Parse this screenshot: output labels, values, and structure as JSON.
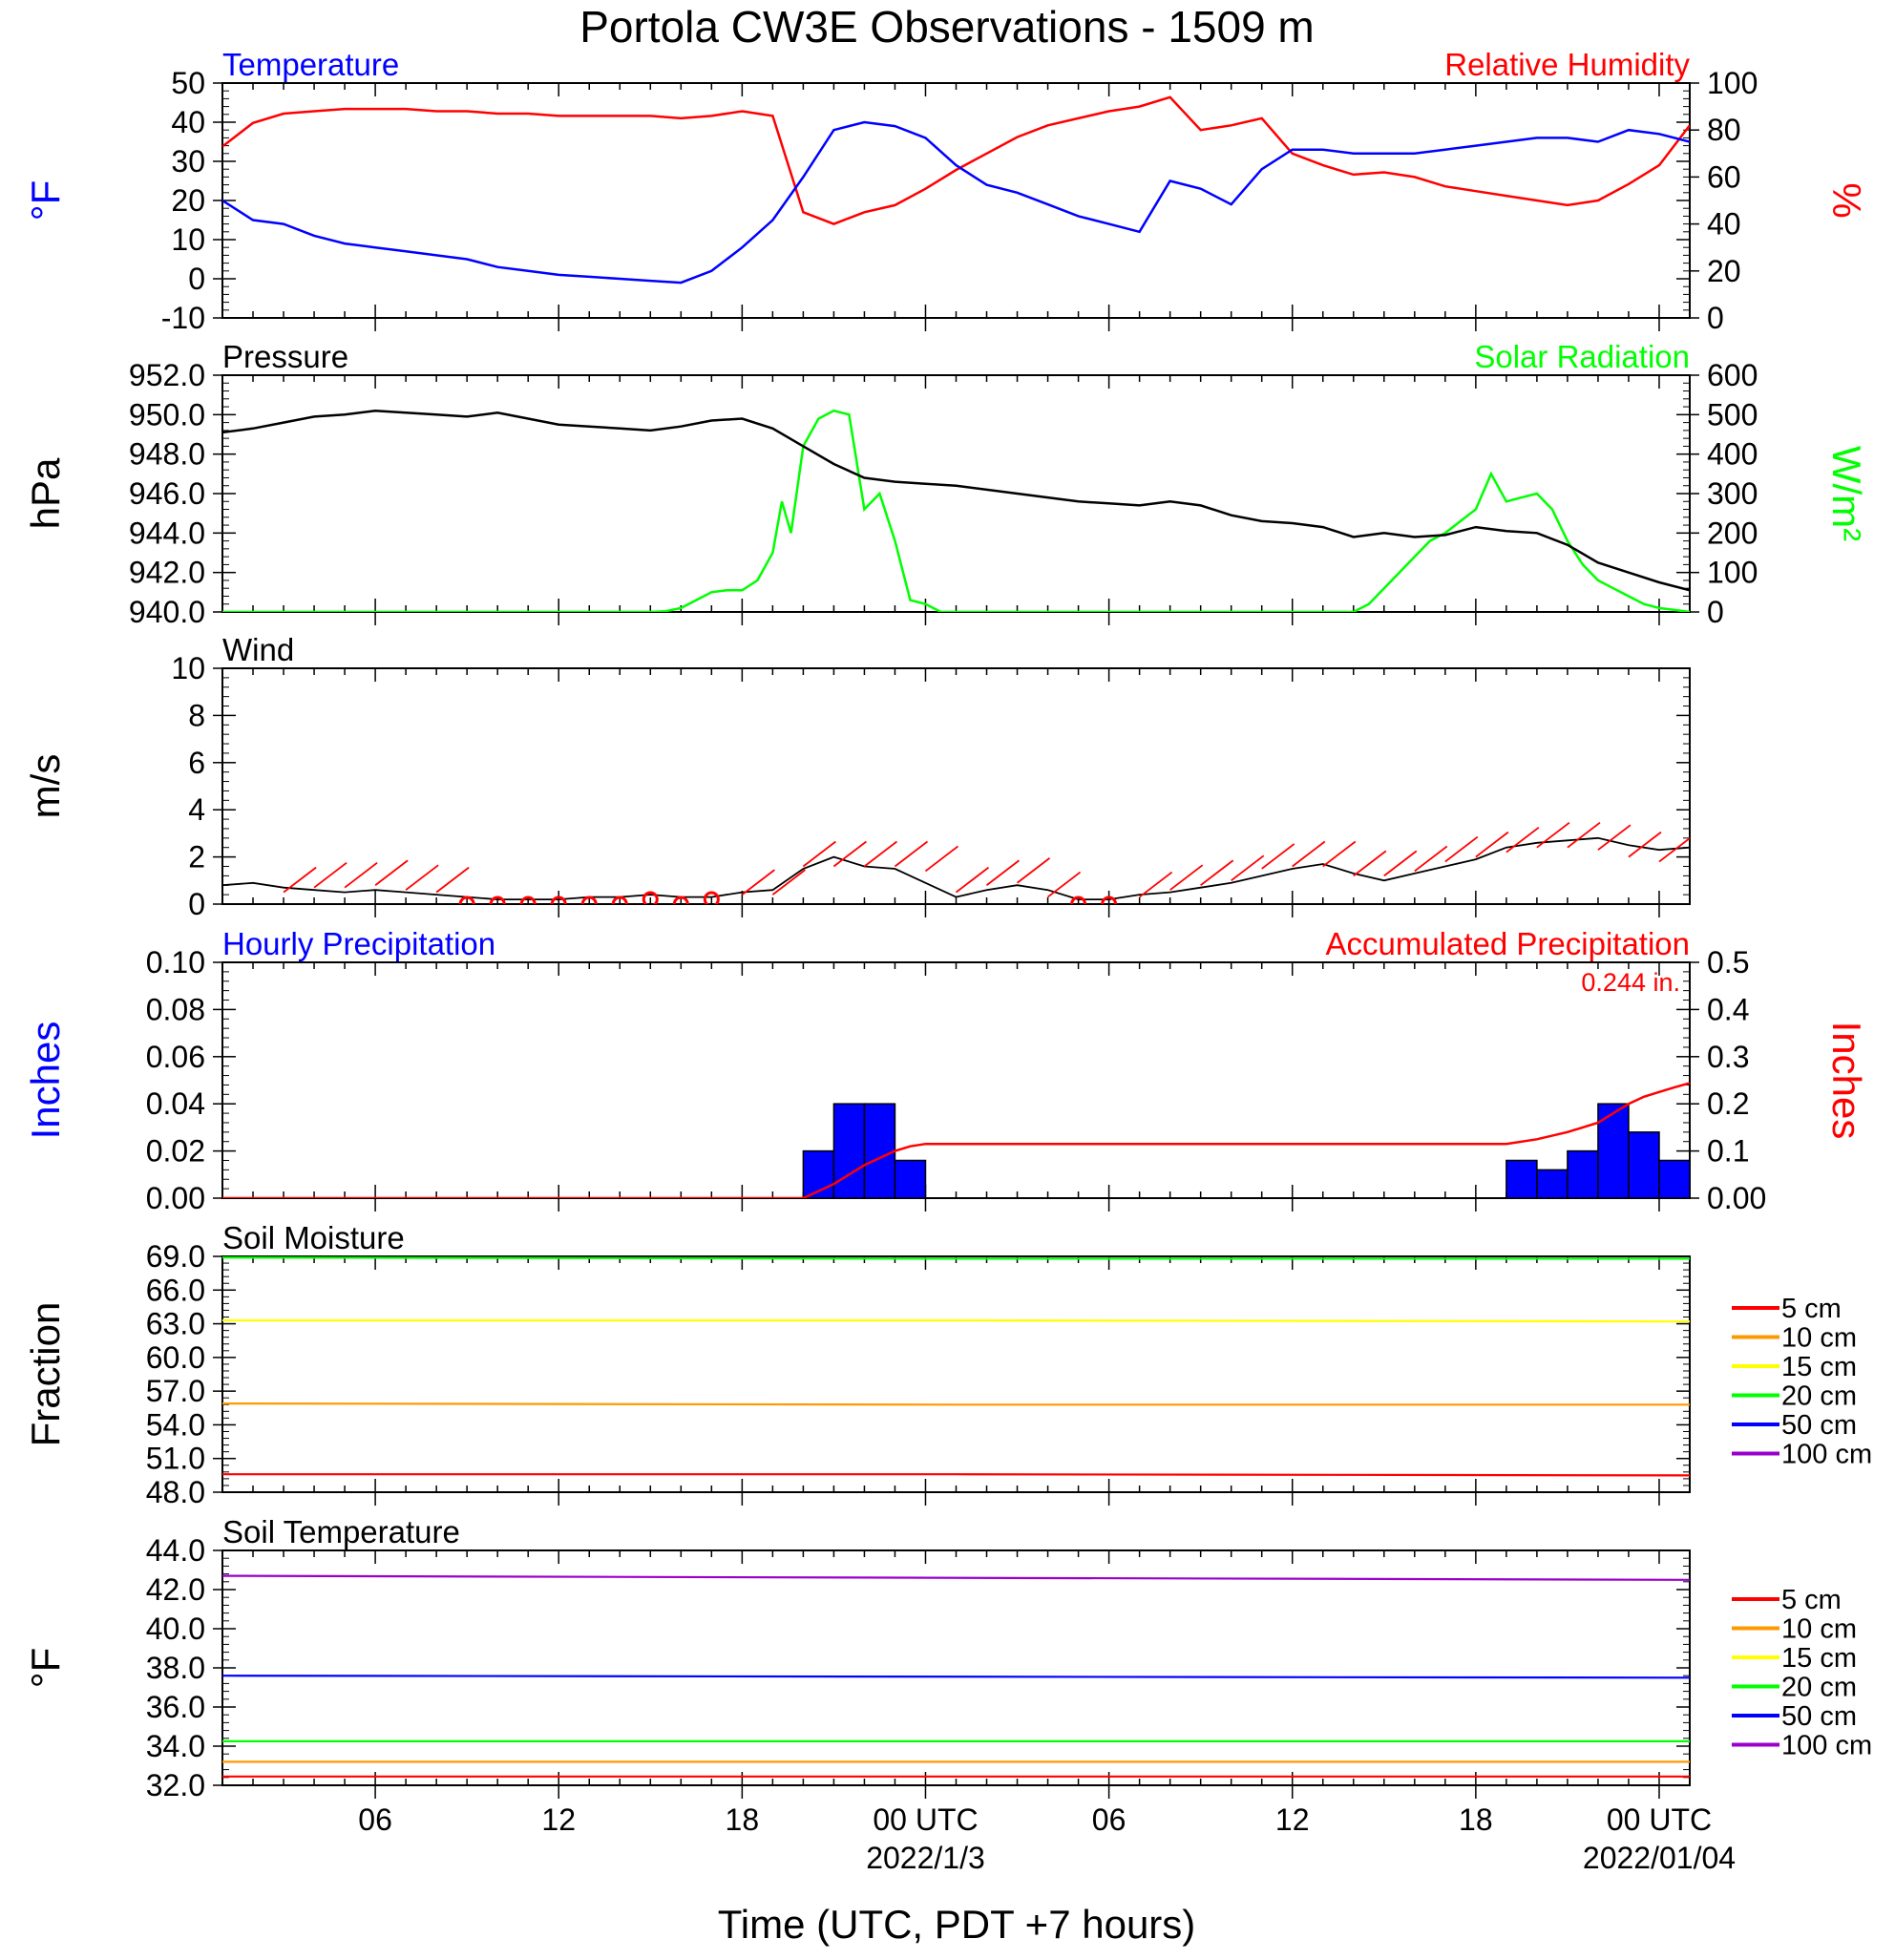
{
  "title": "Portola CW3E Observations - 1509 m",
  "xaxis": {
    "label": "Time (UTC, PDT +7 hours)",
    "tick_labels": [
      {
        "hour": 6,
        "text": "06"
      },
      {
        "hour": 12,
        "text": "12"
      },
      {
        "hour": 18,
        "text": "18"
      },
      {
        "hour": 24,
        "text": "00 UTC"
      },
      {
        "hour": 30,
        "text": "06"
      },
      {
        "hour": 36,
        "text": "12"
      },
      {
        "hour": 42,
        "text": "18"
      },
      {
        "hour": 48,
        "text": "00 UTC"
      }
    ],
    "date_labels": [
      {
        "hour": 24,
        "text": "2022/1/3"
      },
      {
        "hour": 48,
        "text": "2022/01/04"
      }
    ],
    "range_hours": [
      1,
      49
    ]
  },
  "colors": {
    "temperature": "#0000ff",
    "humidity": "#ff0000",
    "pressure": "#000000",
    "solar": "#00ff00",
    "hourly_precip": "#0000ff",
    "accum_precip": "#ff0000",
    "wind_barb": "#ff0000"
  },
  "legend": {
    "items": [
      {
        "label": "5 cm",
        "color": "#ff0000"
      },
      {
        "label": "10 cm",
        "color": "#ff9900"
      },
      {
        "label": "15 cm",
        "color": "#ffff00"
      },
      {
        "label": "20 cm",
        "color": "#00ff00"
      },
      {
        "label": "50 cm",
        "color": "#0000ff"
      },
      {
        "label": "100 cm",
        "color": "#9900cc"
      }
    ]
  },
  "chart_data": [
    {
      "type": "line",
      "panel": "temperature-humidity",
      "left_title": "Temperature",
      "right_title": "Relative Humidity",
      "ylabel_left": "°F",
      "ylabel_right": "%",
      "ylim_left": [
        -10,
        50
      ],
      "ylim_right": [
        0,
        100
      ],
      "yticks_left": [
        "50",
        "40",
        "30",
        "20",
        "10",
        "0",
        "-10"
      ],
      "yticks_right": [
        "100",
        "80",
        "60",
        "40",
        "20",
        "0"
      ],
      "series": [
        {
          "name": "Temperature",
          "axis": "left",
          "x": [
            1,
            2,
            3,
            4,
            5,
            6,
            7,
            8,
            9,
            10,
            11,
            12,
            13,
            14,
            15,
            16,
            17,
            18,
            19,
            20,
            21,
            22,
            23,
            24,
            25,
            26,
            27,
            28,
            29,
            30,
            31,
            32,
            33,
            34,
            35,
            36,
            37,
            38,
            39,
            40,
            41,
            42,
            43,
            44,
            45,
            46,
            47,
            48,
            49
          ],
          "values": [
            20,
            15,
            14,
            11,
            9,
            8,
            7,
            6,
            5,
            3,
            2,
            1,
            0.5,
            0,
            -0.5,
            -1,
            2,
            8,
            15,
            26,
            38,
            40,
            39,
            36,
            29,
            24,
            22,
            19,
            16,
            14,
            12,
            25,
            23,
            19,
            28,
            33,
            33,
            32,
            32,
            32,
            33,
            34,
            35,
            36,
            36,
            35,
            38,
            37,
            35
          ]
        },
        {
          "name": "Relative Humidity",
          "axis": "right",
          "x": [
            1,
            2,
            3,
            4,
            5,
            6,
            7,
            8,
            9,
            10,
            11,
            12,
            13,
            14,
            15,
            16,
            17,
            18,
            19,
            20,
            21,
            22,
            23,
            24,
            25,
            26,
            27,
            28,
            29,
            30,
            31,
            32,
            33,
            34,
            35,
            36,
            37,
            38,
            39,
            40,
            41,
            42,
            43,
            44,
            45,
            46,
            47,
            48,
            49
          ],
          "values": [
            73,
            83,
            87,
            88,
            89,
            89,
            89,
            88,
            88,
            87,
            87,
            86,
            86,
            86,
            86,
            85,
            86,
            88,
            86,
            45,
            40,
            45,
            48,
            55,
            63,
            70,
            77,
            82,
            85,
            88,
            90,
            94,
            80,
            82,
            85,
            70,
            65,
            61,
            62,
            60,
            56,
            54,
            52,
            50,
            48,
            50,
            57,
            65,
            82
          ]
        }
      ]
    },
    {
      "type": "line",
      "panel": "pressure-solar",
      "left_title": "Pressure",
      "right_title": "Solar Radiation",
      "ylabel_left": "hPa",
      "ylabel_right": "W/m²",
      "ylim_left": [
        940,
        952
      ],
      "ylim_right": [
        0,
        600
      ],
      "yticks_left": [
        "952.0",
        "950.0",
        "948.0",
        "946.0",
        "944.0",
        "942.0",
        "940.0"
      ],
      "yticks_right": [
        "600",
        "500",
        "400",
        "300",
        "200",
        "100",
        "0"
      ],
      "series": [
        {
          "name": "Pressure",
          "axis": "left",
          "x": [
            1,
            2,
            3,
            4,
            5,
            6,
            7,
            8,
            9,
            10,
            11,
            12,
            13,
            14,
            15,
            16,
            17,
            18,
            19,
            20,
            21,
            22,
            23,
            24,
            25,
            26,
            27,
            28,
            29,
            30,
            31,
            32,
            33,
            34,
            35,
            36,
            37,
            38,
            39,
            40,
            41,
            42,
            43,
            44,
            45,
            46,
            47,
            48,
            49
          ],
          "values": [
            949.1,
            949.3,
            949.6,
            949.9,
            950.0,
            950.2,
            950.1,
            950.0,
            949.9,
            950.1,
            949.8,
            949.5,
            949.4,
            949.3,
            949.2,
            949.4,
            949.7,
            949.8,
            949.3,
            948.4,
            947.5,
            946.8,
            946.6,
            946.5,
            946.4,
            946.2,
            946.0,
            945.8,
            945.6,
            945.5,
            945.4,
            945.6,
            945.4,
            944.9,
            944.6,
            944.5,
            944.3,
            943.8,
            944.0,
            943.8,
            943.9,
            944.3,
            944.1,
            944.0,
            943.4,
            942.5,
            942.0,
            941.5,
            941.1
          ]
        },
        {
          "name": "Solar Radiation",
          "axis": "right",
          "x": [
            1,
            5,
            10,
            15,
            15.5,
            16,
            16.5,
            17,
            17.5,
            18,
            18.5,
            19,
            19.3,
            19.6,
            20,
            20.5,
            21,
            21.5,
            22,
            22.5,
            23,
            23.5,
            24,
            24.5,
            25,
            30,
            35,
            38,
            38.5,
            39,
            39.5,
            40,
            40.5,
            41,
            41.5,
            42,
            42.5,
            43,
            43.5,
            44,
            44.5,
            45,
            45.5,
            46,
            46.5,
            47,
            47.5,
            48,
            48.5,
            49
          ],
          "values": [
            0,
            0,
            0,
            0,
            2,
            10,
            30,
            50,
            55,
            55,
            80,
            150,
            280,
            200,
            420,
            490,
            510,
            500,
            260,
            300,
            180,
            30,
            20,
            0,
            0,
            0,
            0,
            0,
            20,
            60,
            100,
            140,
            180,
            200,
            230,
            260,
            350,
            280,
            290,
            300,
            260,
            180,
            120,
            80,
            60,
            40,
            20,
            10,
            5,
            0
          ]
        }
      ]
    },
    {
      "type": "line",
      "panel": "wind",
      "left_title": "Wind",
      "ylabel_left": "m/s",
      "ylim_left": [
        0,
        10
      ],
      "yticks_left": [
        "10",
        "8",
        "6",
        "4",
        "2",
        "0"
      ],
      "series": [
        {
          "name": "Wind Speed",
          "x": [
            1,
            2,
            3,
            4,
            5,
            6,
            7,
            8,
            9,
            10,
            11,
            12,
            13,
            14,
            15,
            16,
            17,
            18,
            19,
            20,
            21,
            22,
            23,
            24,
            25,
            26,
            27,
            28,
            29,
            30,
            31,
            32,
            33,
            34,
            35,
            36,
            37,
            38,
            39,
            40,
            41,
            42,
            43,
            44,
            45,
            46,
            47,
            48,
            49
          ],
          "values": [
            0.8,
            0.9,
            0.7,
            0.6,
            0.5,
            0.6,
            0.5,
            0.4,
            0.3,
            0.2,
            0.2,
            0.2,
            0.3,
            0.3,
            0.4,
            0.3,
            0.3,
            0.5,
            0.6,
            1.5,
            2.0,
            1.6,
            1.5,
            0.9,
            0.3,
            0.6,
            0.8,
            0.6,
            0.2,
            0.2,
            0.4,
            0.5,
            0.7,
            0.9,
            1.2,
            1.5,
            1.7,
            1.3,
            1.0,
            1.3,
            1.6,
            1.9,
            2.4,
            2.6,
            2.7,
            2.8,
            2.5,
            2.3,
            2.4
          ]
        },
        {
          "name": "Wind Barbs",
          "x": [
            3,
            4,
            5,
            6,
            7,
            8,
            9,
            10,
            11,
            12,
            13,
            14,
            15,
            16,
            17,
            18,
            19,
            20,
            21,
            22,
            23,
            24,
            25,
            26,
            27,
            28,
            29,
            30,
            31,
            32,
            33,
            34,
            35,
            36,
            37,
            38,
            39,
            40,
            41,
            42,
            43,
            44,
            45,
            46,
            47,
            48
          ],
          "values": [
            0.5,
            0.7,
            0.7,
            0.8,
            0.6,
            0.5,
            0,
            0,
            0,
            0,
            0,
            0,
            0.2,
            0,
            0.2,
            0.4,
            0.4,
            1.6,
            1.6,
            1.6,
            1.6,
            1.4,
            0.5,
            0.8,
            0.9,
            0.3,
            0,
            0,
            0.3,
            0.6,
            0.8,
            1.0,
            1.5,
            1.6,
            1.6,
            1.2,
            1.2,
            1.4,
            1.8,
            2.0,
            2.2,
            2.4,
            2.4,
            2.3,
            2.0,
            1.8
          ]
        }
      ]
    },
    {
      "type": "bar",
      "panel": "precipitation",
      "left_title": "Hourly Precipitation",
      "right_title": "Accumulated Precipitation",
      "annotation": "0.244 in.",
      "ylabel_left": "Inches",
      "ylabel_right": "Inches",
      "ylim_left": [
        0,
        0.1
      ],
      "ylim_right": [
        0,
        0.5
      ],
      "yticks_left": [
        "0.10",
        "0.08",
        "0.06",
        "0.04",
        "0.02",
        "0.00"
      ],
      "yticks_right": [
        "0.5",
        "0.4",
        "0.3",
        "0.2",
        "0.1",
        "0.00"
      ],
      "hourly_bars": [
        {
          "start": 20,
          "end": 21,
          "value": 0.02
        },
        {
          "start": 21,
          "end": 22,
          "value": 0.04
        },
        {
          "start": 22,
          "end": 23,
          "value": 0.04
        },
        {
          "start": 23,
          "end": 24,
          "value": 0.016
        },
        {
          "start": 43,
          "end": 44,
          "value": 0.016
        },
        {
          "start": 44,
          "end": 45,
          "value": 0.012
        },
        {
          "start": 45,
          "end": 46,
          "value": 0.02
        },
        {
          "start": 46,
          "end": 47,
          "value": 0.04
        },
        {
          "start": 47,
          "end": 48,
          "value": 0.028
        },
        {
          "start": 48,
          "end": 49,
          "value": 0.016
        }
      ],
      "series": [
        {
          "name": "Accumulated Precipitation",
          "axis": "right",
          "x": [
            1,
            20,
            21,
            22,
            23,
            23.5,
            24,
            30,
            36,
            42,
            43,
            44,
            45,
            46,
            46.5,
            47,
            47.5,
            48,
            48.5,
            49
          ],
          "values": [
            0,
            0,
            0.03,
            0.07,
            0.1,
            0.11,
            0.115,
            0.115,
            0.115,
            0.115,
            0.115,
            0.125,
            0.14,
            0.16,
            0.18,
            0.2,
            0.215,
            0.225,
            0.235,
            0.244
          ]
        }
      ]
    },
    {
      "type": "line",
      "panel": "soil-moisture",
      "left_title": "Soil Moisture",
      "ylabel_left": "Fraction",
      "ylim_left": [
        48,
        69
      ],
      "yticks_left": [
        "69.0",
        "66.0",
        "63.0",
        "60.0",
        "57.0",
        "54.0",
        "51.0",
        "48.0"
      ],
      "series": [
        {
          "name": "5 cm",
          "x": [
            1,
            25,
            49
          ],
          "values": [
            49.6,
            49.6,
            49.5
          ]
        },
        {
          "name": "10 cm",
          "x": [
            1,
            25,
            49
          ],
          "values": [
            55.9,
            55.8,
            55.8
          ]
        },
        {
          "name": "15 cm",
          "x": [
            1,
            25,
            49
          ],
          "values": [
            63.3,
            63.3,
            63.2
          ]
        },
        {
          "name": "20 cm",
          "x": [
            1,
            25,
            49
          ],
          "values": [
            68.9,
            68.8,
            68.8
          ]
        }
      ]
    },
    {
      "type": "line",
      "panel": "soil-temperature",
      "left_title": "Soil Temperature",
      "ylabel_left": "°F",
      "ylim_left": [
        32,
        44
      ],
      "yticks_left": [
        "44.0",
        "42.0",
        "40.0",
        "38.0",
        "36.0",
        "34.0",
        "32.0"
      ],
      "series": [
        {
          "name": "5 cm",
          "x": [
            1,
            49
          ],
          "values": [
            32.45,
            32.45
          ]
        },
        {
          "name": "10 cm",
          "x": [
            1,
            49
          ],
          "values": [
            33.2,
            33.2
          ]
        },
        {
          "name": "20 cm",
          "x": [
            1,
            49
          ],
          "values": [
            34.25,
            34.25
          ]
        },
        {
          "name": "50 cm",
          "x": [
            1,
            49
          ],
          "values": [
            37.6,
            37.5
          ]
        },
        {
          "name": "100 cm",
          "x": [
            1,
            49
          ],
          "values": [
            42.7,
            42.5
          ]
        }
      ]
    }
  ]
}
